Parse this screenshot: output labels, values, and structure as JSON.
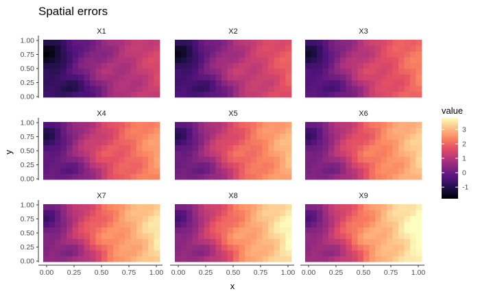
{
  "chart_data": {
    "type": "heatmap",
    "title": "Spatial errors",
    "xlabel": "x",
    "ylabel": "y",
    "xlim": [
      0,
      1
    ],
    "ylim": [
      0,
      1
    ],
    "x_ticks": [
      "0.00",
      "0.25",
      "0.50",
      "0.75",
      "1.00"
    ],
    "y_ticks": [
      "0.00",
      "0.25",
      "0.50",
      "0.75",
      "1.00"
    ],
    "grid": false,
    "colormap": "magma",
    "legend": {
      "title": "value",
      "placement": "right",
      "range": [
        -1.8,
        3.8
      ],
      "ticks": [
        "-1",
        "0",
        "1",
        "2",
        "3"
      ]
    },
    "grid_size": {
      "nx": 20,
      "ny": 10
    },
    "panels": [
      {
        "name": "X1",
        "shift": -0.6,
        "slope": 2.1
      },
      {
        "name": "X2",
        "shift": -0.4,
        "slope": 2.3
      },
      {
        "name": "X3",
        "shift": -0.2,
        "slope": 2.5
      },
      {
        "name": "X4",
        "shift": 0.0,
        "slope": 2.7
      },
      {
        "name": "X5",
        "shift": 0.15,
        "slope": 2.9
      },
      {
        "name": "X6",
        "shift": 0.3,
        "slope": 3.0
      },
      {
        "name": "X7",
        "shift": 0.45,
        "slope": 3.1
      },
      {
        "name": "X8",
        "shift": 0.55,
        "slope": 3.2
      },
      {
        "name": "X9",
        "shift": 0.65,
        "slope": 3.3
      }
    ]
  }
}
